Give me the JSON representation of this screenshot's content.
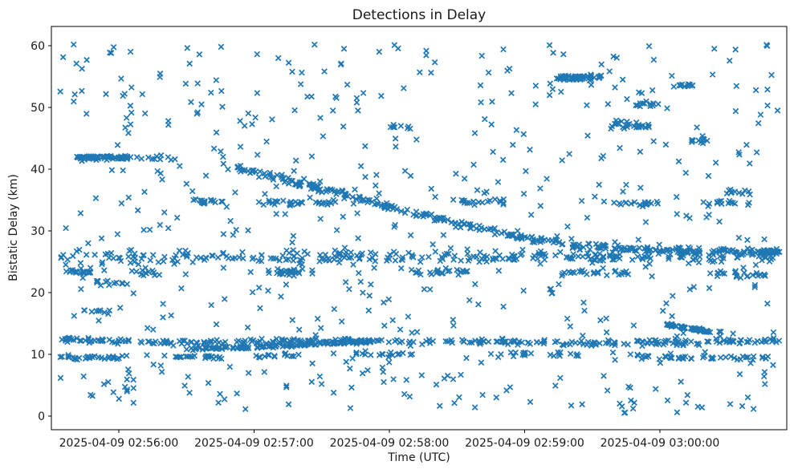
{
  "figure": {
    "background": "#ffffff",
    "spine_color": "#000000"
  },
  "chart_data": {
    "type": "scatter",
    "title": "Detections in Delay",
    "xlabel": "Time (UTC)",
    "ylabel": "Bistatic Delay (km)",
    "marker": "x",
    "marker_color": "#1f77b4",
    "marker_size_px": 7,
    "grid": false,
    "legend": "none",
    "x_axis": {
      "unit": "seconds relative to 2025-04-09 02:56:00 UTC",
      "range_sec": [
        -30,
        296
      ],
      "ticks": [
        {
          "t": 0,
          "label": "2025-04-09 02:56:00"
        },
        {
          "t": 60,
          "label": "2025-04-09 02:57:00"
        },
        {
          "t": 120,
          "label": "2025-04-09 02:58:00"
        },
        {
          "t": 180,
          "label": "2025-04-09 02:59:00"
        },
        {
          "t": 240,
          "label": "2025-04-09 03:00:00"
        }
      ]
    },
    "y_axis": {
      "range": [
        -2.2,
        63.2
      ],
      "ticks": [
        0,
        10,
        20,
        30,
        40,
        50,
        60
      ]
    },
    "seed": 20250409,
    "structures": [
      {
        "name": "dense-line-42km",
        "kind": "band",
        "t": [
          -19,
          4
        ],
        "y": 41.9,
        "jitter_y": 0.22,
        "n": 70
      },
      {
        "name": "line-42km-tail",
        "kind": "band",
        "t": [
          4,
          26
        ],
        "y": 41.8,
        "jitter_y": 0.3,
        "n": 12
      },
      {
        "name": "descending-track-40-to-26km",
        "kind": "line",
        "pts": [
          [
            52,
            40.3
          ],
          [
            75,
            38.2
          ],
          [
            100,
            35.9
          ],
          [
            125,
            33.4
          ],
          [
            150,
            31.2
          ],
          [
            175,
            29.2
          ],
          [
            200,
            27.7
          ],
          [
            230,
            27.0
          ],
          [
            262,
            26.8
          ],
          [
            293,
            26.6
          ]
        ],
        "jitter_y": 0.38,
        "n": 330
      },
      {
        "name": "band-26km",
        "kind": "band",
        "t": [
          -26,
          293
        ],
        "y": 25.8,
        "jitter_y": 0.75,
        "n": 280
      },
      {
        "name": "band-23km-a",
        "kind": "band",
        "t": [
          -24,
          -6
        ],
        "y": 23.4,
        "jitter_y": 0.4,
        "n": 20
      },
      {
        "name": "band-23km-b",
        "kind": "band",
        "t": [
          4,
          16
        ],
        "y": 23.2,
        "jitter_y": 0.35,
        "n": 12
      },
      {
        "name": "band-23km-c",
        "kind": "band",
        "t": [
          56,
          86
        ],
        "y": 23.3,
        "jitter_y": 0.4,
        "n": 26
      },
      {
        "name": "band-23km-d",
        "kind": "band",
        "t": [
          128,
          158
        ],
        "y": 23.4,
        "jitter_y": 0.4,
        "n": 24
      },
      {
        "name": "band-23km-e",
        "kind": "band",
        "t": [
          196,
          226
        ],
        "y": 23.3,
        "jitter_y": 0.4,
        "n": 24
      },
      {
        "name": "band-23km-f",
        "kind": "band",
        "t": [
          262,
          288
        ],
        "y": 23.0,
        "jitter_y": 0.4,
        "n": 20
      },
      {
        "name": "band-12km",
        "kind": "line",
        "pts": [
          [
            -26,
            12.3
          ],
          [
            30,
            11.9
          ],
          [
            90,
            12.2
          ],
          [
            150,
            12.1
          ],
          [
            210,
            11.9
          ],
          [
            250,
            12.0
          ],
          [
            293,
            12.2
          ]
        ],
        "jitter_y": 0.3,
        "n": 300
      },
      {
        "name": "rising-track-11-to-12km",
        "kind": "line",
        "pts": [
          [
            30,
            10.85
          ],
          [
            70,
            11.3
          ],
          [
            115,
            12.2
          ]
        ],
        "jitter_y": 0.15,
        "n": 130
      },
      {
        "name": "band-9km-a",
        "kind": "band",
        "t": [
          -26,
          6
        ],
        "y": 9.5,
        "jitter_y": 0.28,
        "n": 30
      },
      {
        "name": "band-9km-b",
        "kind": "band",
        "t": [
          20,
          46
        ],
        "y": 9.6,
        "jitter_y": 0.25,
        "n": 22
      },
      {
        "name": "band-9km-c",
        "kind": "band",
        "t": [
          60,
          82
        ],
        "y": 9.8,
        "jitter_y": 0.25,
        "n": 16
      },
      {
        "name": "band-10km-d",
        "kind": "band",
        "t": [
          104,
          132
        ],
        "y": 10.0,
        "jitter_y": 0.3,
        "n": 18
      },
      {
        "name": "band-10km-e",
        "kind": "band",
        "t": [
          168,
          204
        ],
        "y": 9.9,
        "jitter_y": 0.3,
        "n": 22
      },
      {
        "name": "descending-9km-track",
        "kind": "line",
        "pts": [
          [
            230,
            9.8
          ],
          [
            254,
            9.3
          ]
        ],
        "jitter_y": 0.2,
        "n": 26
      },
      {
        "name": "band-9km-f",
        "kind": "band",
        "t": [
          258,
          288
        ],
        "y": 9.4,
        "jitter_y": 0.25,
        "n": 22
      },
      {
        "name": "row-55km",
        "kind": "band",
        "t": [
          194,
          214
        ],
        "y": 54.8,
        "jitter_y": 0.3,
        "n": 55
      },
      {
        "name": "row-34km-a",
        "kind": "band",
        "t": [
          33,
          46
        ],
        "y": 34.7,
        "jitter_y": 0.3,
        "n": 18
      },
      {
        "name": "row-34km-b",
        "kind": "band",
        "t": [
          62,
          98
        ],
        "y": 34.6,
        "jitter_y": 0.35,
        "n": 30
      },
      {
        "name": "row-34km-c",
        "kind": "band",
        "t": [
          148,
          172
        ],
        "y": 34.8,
        "jitter_y": 0.3,
        "n": 18
      },
      {
        "name": "row-34km-d",
        "kind": "band",
        "t": [
          222,
          240
        ],
        "y": 34.5,
        "jitter_y": 0.3,
        "n": 16
      },
      {
        "name": "row-34km-e",
        "kind": "band",
        "t": [
          258,
          280
        ],
        "y": 34.5,
        "jitter_y": 0.3,
        "n": 14
      },
      {
        "name": "track-14km",
        "kind": "line",
        "pts": [
          [
            243,
            14.8
          ],
          [
            263,
            13.6
          ]
        ],
        "jitter_y": 0.18,
        "n": 55
      },
      {
        "name": "row-47km",
        "kind": "band",
        "t": [
          218,
          236
        ],
        "y": 47.0,
        "jitter_y": 0.4,
        "n": 26
      },
      {
        "name": "row-21km",
        "kind": "band",
        "t": [
          -12,
          4
        ],
        "y": 21.6,
        "jitter_y": 0.3,
        "n": 13
      },
      {
        "name": "row-17km",
        "kind": "band",
        "t": [
          -16,
          -4
        ],
        "y": 17.0,
        "jitter_y": 0.25,
        "n": 8
      },
      {
        "name": "row-50km",
        "kind": "band",
        "t": [
          228,
          240
        ],
        "y": 50.6,
        "jitter_y": 0.3,
        "n": 13
      },
      {
        "name": "row-53km",
        "kind": "band",
        "t": [
          246,
          256
        ],
        "y": 53.6,
        "jitter_y": 0.3,
        "n": 11
      },
      {
        "name": "row-36km",
        "kind": "band",
        "t": [
          268,
          280
        ],
        "y": 36.2,
        "jitter_y": 0.3,
        "n": 11
      },
      {
        "name": "row-44km",
        "kind": "band",
        "t": [
          250,
          262
        ],
        "y": 44.6,
        "jitter_y": 0.3,
        "n": 10
      },
      {
        "name": "row-46km",
        "kind": "band",
        "t": [
          118,
          130
        ],
        "y": 46.8,
        "jitter_y": 0.3,
        "n": 8
      },
      {
        "name": "background-scatter",
        "kind": "cloud",
        "t": [
          -26,
          293
        ],
        "y": [
          8,
          60.2
        ],
        "n": 470
      },
      {
        "name": "low-altitude-scatter",
        "kind": "cloud",
        "t": [
          -26,
          293
        ],
        "y": [
          0.5,
          8
        ],
        "n": 95
      }
    ]
  }
}
